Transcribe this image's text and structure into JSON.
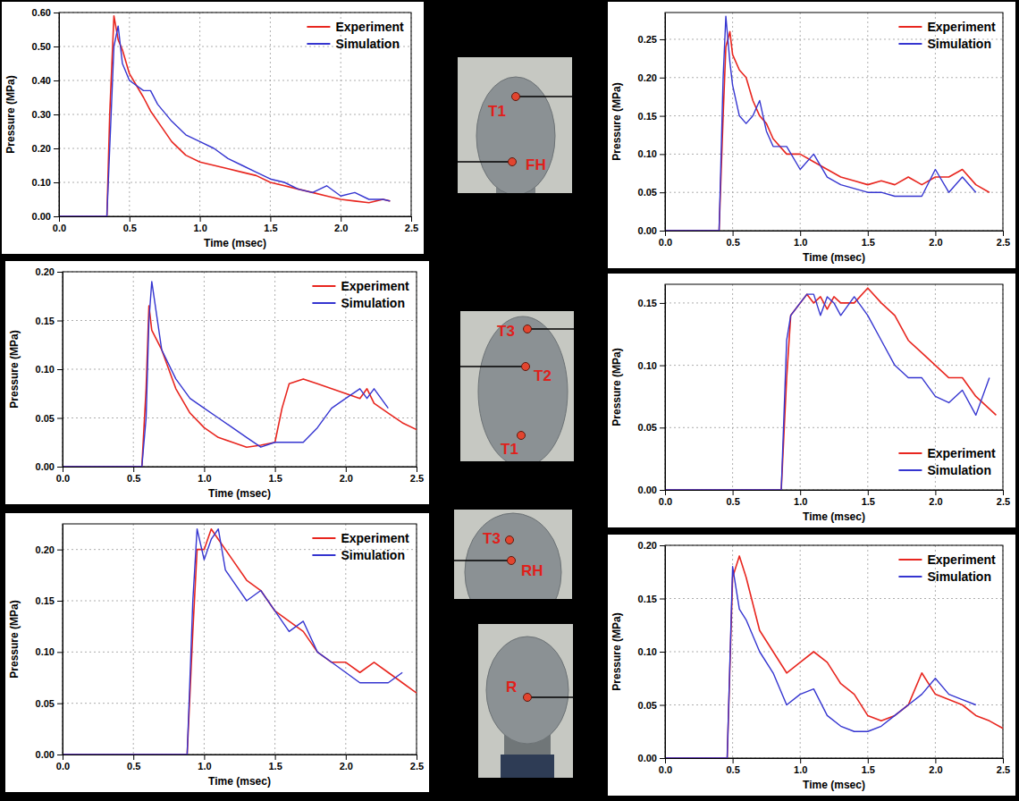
{
  "chart_data": [
    {
      "type": "line",
      "x_label": "Time (msec)",
      "y_label": "Pressure (MPa)",
      "grid": true,
      "legend": "top-right",
      "xlim": [
        0,
        2.5
      ],
      "ylim": [
        0,
        0.6
      ],
      "xticks": [
        {
          "value": 0,
          "label": "0.0"
        },
        0.5,
        {
          "value": 1,
          "label": "1.0"
        },
        1.5,
        {
          "value": 2,
          "label": "2.0"
        },
        2.5
      ],
      "yticks": [
        {
          "value": 0,
          "label": "0.00"
        },
        {
          "value": 0.1,
          "label": "0.10"
        },
        {
          "value": 0.2,
          "label": "0.20"
        },
        {
          "value": 0.3,
          "label": "0.30"
        },
        {
          "value": 0.4,
          "label": "0.40"
        },
        {
          "value": 0.5,
          "label": "0.50"
        },
        {
          "value": 0.6,
          "label": "0.60"
        }
      ],
      "x": [
        0,
        0.34,
        0.36,
        0.39,
        0.42,
        0.45,
        0.5,
        0.6,
        0.65,
        0.7,
        0.8,
        0.9,
        1.0,
        1.1,
        1.2,
        1.3,
        1.4,
        1.5,
        1.6,
        1.7,
        1.8,
        1.9,
        2.0,
        2.1,
        2.2,
        2.3,
        2.35
      ],
      "series": [
        {
          "name": "Experiment",
          "color": "#e8261f",
          "values": [
            0,
            0,
            0.3,
            0.59,
            0.52,
            0.49,
            0.42,
            0.35,
            0.31,
            0.28,
            0.22,
            0.18,
            0.16,
            0.15,
            0.14,
            0.13,
            0.12,
            0.1,
            0.09,
            0.08,
            0.07,
            0.06,
            0.05,
            0.045,
            0.04,
            0.05,
            0.045
          ]
        },
        {
          "name": "Simulation",
          "color": "#3535d0",
          "values": [
            0,
            0,
            0.2,
            0.5,
            0.56,
            0.45,
            0.4,
            0.37,
            0.37,
            0.33,
            0.28,
            0.24,
            0.22,
            0.2,
            0.17,
            0.15,
            0.13,
            0.11,
            0.1,
            0.08,
            0.07,
            0.09,
            0.06,
            0.07,
            0.05,
            0.05,
            0.045
          ]
        }
      ]
    },
    {
      "type": "line",
      "x_label": "Time (msec)",
      "y_label": "Pressure (MPa)",
      "grid": true,
      "legend": "top-right",
      "xlim": [
        0,
        2.5
      ],
      "ylim": [
        0,
        0.285
      ],
      "xticks": [
        {
          "value": 0,
          "label": "0.0"
        },
        0.5,
        {
          "value": 1,
          "label": "1.0"
        },
        1.5,
        {
          "value": 2,
          "label": "2.0"
        },
        2.5
      ],
      "yticks": [
        {
          "value": 0,
          "label": "0.00"
        },
        {
          "value": 0.05,
          "label": "0.05"
        },
        {
          "value": 0.1,
          "label": "0.10"
        },
        {
          "value": 0.15,
          "label": "0.15"
        },
        {
          "value": 0.2,
          "label": "0.20"
        },
        {
          "value": 0.25,
          "label": "0.25"
        }
      ],
      "x": [
        0,
        0.4,
        0.43,
        0.45,
        0.48,
        0.5,
        0.55,
        0.6,
        0.65,
        0.7,
        0.75,
        0.8,
        0.9,
        1.0,
        1.1,
        1.2,
        1.3,
        1.4,
        1.5,
        1.6,
        1.7,
        1.8,
        1.9,
        2.0,
        2.1,
        2.2,
        2.3,
        2.4
      ],
      "series": [
        {
          "name": "Experiment",
          "color": "#e8261f",
          "values": [
            0,
            0,
            0.15,
            0.24,
            0.26,
            0.23,
            0.21,
            0.2,
            0.17,
            0.15,
            0.14,
            0.12,
            0.1,
            0.1,
            0.09,
            0.08,
            0.07,
            0.065,
            0.06,
            0.065,
            0.06,
            0.07,
            0.06,
            0.07,
            0.07,
            0.08,
            0.06,
            0.05
          ]
        },
        {
          "name": "Simulation",
          "color": "#3535d0",
          "values": [
            0,
            0,
            0.2,
            0.28,
            0.22,
            0.19,
            0.15,
            0.14,
            0.15,
            0.17,
            0.13,
            0.11,
            0.11,
            0.08,
            0.1,
            0.07,
            0.06,
            0.055,
            0.05,
            0.05,
            0.045,
            0.045,
            0.045,
            0.08,
            0.05,
            0.07,
            0.05,
            null
          ]
        }
      ]
    },
    {
      "type": "line",
      "x_label": "Time (msec)",
      "y_label": "Pressure (MPa)",
      "grid": true,
      "legend": "top-right",
      "xlim": [
        0,
        2.5
      ],
      "ylim": [
        0,
        0.2
      ],
      "xticks": [
        {
          "value": 0,
          "label": "0.0"
        },
        0.5,
        {
          "value": 1,
          "label": "1.0"
        },
        1.5,
        {
          "value": 2,
          "label": "2.0"
        },
        2.5
      ],
      "yticks": [
        {
          "value": 0,
          "label": "0.00"
        },
        {
          "value": 0.05,
          "label": "0.05"
        },
        {
          "value": 0.1,
          "label": "0.10"
        },
        {
          "value": 0.15,
          "label": "0.15"
        },
        {
          "value": 0.2,
          "label": "0.20"
        }
      ],
      "x": [
        0,
        0.56,
        0.59,
        0.61,
        0.63,
        0.7,
        0.8,
        0.9,
        1.0,
        1.1,
        1.2,
        1.3,
        1.4,
        1.5,
        1.55,
        1.6,
        1.7,
        1.8,
        1.9,
        2.0,
        2.1,
        2.15,
        2.2,
        2.3,
        2.4,
        2.5
      ],
      "series": [
        {
          "name": "Experiment",
          "color": "#e8261f",
          "values": [
            0,
            0,
            0.08,
            0.165,
            0.14,
            0.12,
            0.08,
            0.055,
            0.04,
            0.03,
            0.025,
            0.02,
            0.022,
            0.025,
            0.06,
            0.085,
            0.09,
            0.085,
            0.08,
            0.075,
            0.07,
            0.08,
            0.065,
            0.055,
            0.045,
            0.038
          ]
        },
        {
          "name": "Simulation",
          "color": "#3535d0",
          "values": [
            0,
            0,
            0.05,
            0.15,
            0.19,
            0.12,
            0.09,
            0.07,
            0.06,
            0.05,
            0.04,
            0.03,
            0.02,
            0.025,
            0.025,
            0.025,
            0.025,
            0.04,
            0.06,
            0.07,
            0.08,
            0.07,
            0.08,
            0.06,
            null,
            null
          ]
        }
      ]
    },
    {
      "type": "line",
      "x_label": "Time (msec)",
      "y_label": "Pressure (MPa)",
      "grid": true,
      "legend": "bottom-right",
      "xlim": [
        0,
        2.5
      ],
      "ylim": [
        0,
        0.165
      ],
      "xticks": [
        {
          "value": 0,
          "label": "0.0"
        },
        0.5,
        {
          "value": 1,
          "label": "1.0"
        },
        1.5,
        {
          "value": 2,
          "label": "2.0"
        },
        2.5
      ],
      "yticks": [
        {
          "value": 0,
          "label": "0.00"
        },
        {
          "value": 0.05,
          "label": "0.05"
        },
        {
          "value": 0.1,
          "label": "0.10"
        },
        {
          "value": 0.15,
          "label": "0.15"
        }
      ],
      "x": [
        0,
        0.86,
        0.9,
        0.93,
        1.0,
        1.05,
        1.1,
        1.15,
        1.2,
        1.25,
        1.3,
        1.4,
        1.5,
        1.6,
        1.7,
        1.8,
        1.9,
        2.0,
        2.1,
        2.2,
        2.3,
        2.4,
        2.45
      ],
      "series": [
        {
          "name": "Experiment",
          "color": "#e8261f",
          "values": [
            0,
            0,
            0.09,
            0.14,
            0.15,
            0.157,
            0.15,
            0.155,
            0.145,
            0.155,
            0.15,
            0.15,
            0.162,
            0.15,
            0.14,
            0.12,
            0.11,
            0.1,
            0.09,
            0.09,
            0.075,
            0.065,
            0.06
          ]
        },
        {
          "name": "Simulation",
          "color": "#3535d0",
          "values": [
            0,
            0,
            0.12,
            0.14,
            0.15,
            0.157,
            0.157,
            0.14,
            0.155,
            0.15,
            0.14,
            0.155,
            0.14,
            0.12,
            0.1,
            0.09,
            0.09,
            0.075,
            0.07,
            0.08,
            0.06,
            0.09,
            null
          ]
        }
      ]
    },
    {
      "type": "line",
      "x_label": "Time (msec)",
      "y_label": "Pressure (MPa)",
      "grid": true,
      "legend": "top-right",
      "xlim": [
        0,
        2.5
      ],
      "ylim": [
        0,
        0.225
      ],
      "xticks": [
        {
          "value": 0,
          "label": "0.0"
        },
        0.5,
        {
          "value": 1,
          "label": "1.0"
        },
        1.5,
        {
          "value": 2,
          "label": "2.0"
        },
        2.5
      ],
      "yticks": [
        {
          "value": 0,
          "label": "0.00"
        },
        {
          "value": 0.05,
          "label": "0.05"
        },
        {
          "value": 0.1,
          "label": "0.10"
        },
        {
          "value": 0.15,
          "label": "0.15"
        },
        {
          "value": 0.2,
          "label": "0.20"
        }
      ],
      "x": [
        0,
        0.88,
        0.92,
        0.95,
        1.0,
        1.05,
        1.1,
        1.15,
        1.2,
        1.3,
        1.4,
        1.5,
        1.6,
        1.7,
        1.8,
        1.9,
        2.0,
        2.1,
        2.2,
        2.3,
        2.4,
        2.5
      ],
      "series": [
        {
          "name": "Experiment",
          "color": "#e8261f",
          "values": [
            0,
            0,
            0.12,
            0.2,
            0.2,
            0.22,
            0.21,
            0.2,
            0.19,
            0.17,
            0.16,
            0.14,
            0.13,
            0.12,
            0.1,
            0.09,
            0.09,
            0.08,
            0.09,
            0.08,
            0.07,
            0.06
          ]
        },
        {
          "name": "Simulation",
          "color": "#3535d0",
          "values": [
            0,
            0,
            0.15,
            0.22,
            0.19,
            0.21,
            0.22,
            0.18,
            0.17,
            0.15,
            0.16,
            0.14,
            0.12,
            0.13,
            0.1,
            0.09,
            0.08,
            0.07,
            0.07,
            0.07,
            0.08,
            null
          ]
        }
      ]
    },
    {
      "type": "line",
      "x_label": "Time (msec)",
      "y_label": "Pressure (MPa)",
      "grid": true,
      "legend": "top-right",
      "xlim": [
        0,
        2.5
      ],
      "ylim": [
        0,
        0.2
      ],
      "xticks": [
        {
          "value": 0,
          "label": "0.0"
        },
        0.5,
        {
          "value": 1,
          "label": "1.0"
        },
        1.5,
        {
          "value": 2,
          "label": "2.0"
        },
        2.5
      ],
      "yticks": [
        {
          "value": 0,
          "label": "0.00"
        },
        {
          "value": 0.05,
          "label": "0.05"
        },
        {
          "value": 0.1,
          "label": "0.10"
        },
        {
          "value": 0.15,
          "label": "0.15"
        },
        {
          "value": 0.2,
          "label": "0.20"
        }
      ],
      "x": [
        0,
        0.46,
        0.5,
        0.55,
        0.6,
        0.7,
        0.8,
        0.9,
        1.0,
        1.1,
        1.2,
        1.3,
        1.4,
        1.5,
        1.6,
        1.7,
        1.8,
        1.9,
        2.0,
        2.1,
        2.2,
        2.3,
        2.4,
        2.5
      ],
      "series": [
        {
          "name": "Experiment",
          "color": "#e8261f",
          "values": [
            0,
            0,
            0.17,
            0.19,
            0.17,
            0.12,
            0.1,
            0.08,
            0.09,
            0.1,
            0.09,
            0.07,
            0.06,
            0.04,
            0.035,
            0.04,
            0.05,
            0.08,
            0.06,
            0.055,
            0.05,
            0.04,
            0.035,
            0.028
          ]
        },
        {
          "name": "Simulation",
          "color": "#3535d0",
          "values": [
            0,
            0,
            0.18,
            0.14,
            0.13,
            0.1,
            0.08,
            0.05,
            0.06,
            0.065,
            0.04,
            0.03,
            0.025,
            0.025,
            0.03,
            0.04,
            0.05,
            0.06,
            0.075,
            0.06,
            0.055,
            0.05,
            null,
            null
          ]
        }
      ]
    }
  ],
  "photos": [
    {
      "labels": [
        "T1",
        "FH"
      ]
    },
    {
      "labels": [
        "T3",
        "T2",
        "T1"
      ]
    },
    {
      "labels": [
        "T3",
        "RH"
      ]
    },
    {
      "labels": [
        "R"
      ]
    }
  ]
}
